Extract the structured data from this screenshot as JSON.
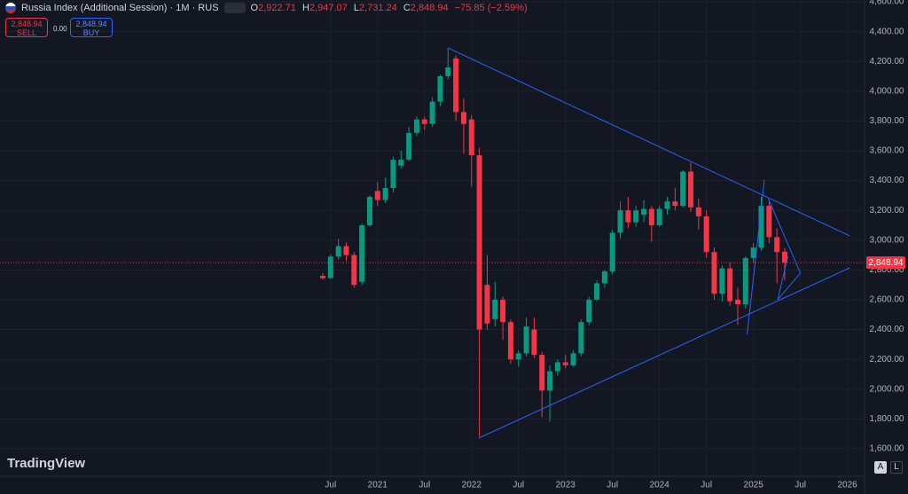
{
  "header": {
    "title": "Russia Index (Additional Session) · 1M · RUS",
    "ohlc": [
      {
        "label": "O",
        "value": "2,922.71"
      },
      {
        "label": "H",
        "value": "2,947.07"
      },
      {
        "label": "L",
        "value": "2,731.24"
      },
      {
        "label": "C",
        "value": "2,848.94"
      }
    ],
    "change": "−75.85 (−2.59%)",
    "sell": {
      "price": "2,848.94",
      "label": "SELL"
    },
    "spread": "0.00",
    "buy": {
      "price": "2,848.94",
      "label": "BUY"
    }
  },
  "chart_data": {
    "type": "candlestick",
    "categories": [
      null,
      "Jul",
      null,
      null,
      null,
      null,
      null,
      "2021",
      null,
      null,
      null,
      null,
      null,
      "Jul",
      null,
      null,
      null,
      null,
      null,
      "2022",
      null,
      null,
      null,
      null,
      null,
      "Jul",
      null,
      null,
      null,
      null,
      null,
      "2023",
      null,
      null,
      null,
      null,
      null,
      "Jul",
      null,
      null,
      null,
      null,
      null,
      "2024",
      null,
      null,
      null,
      null,
      null,
      "Jul",
      null,
      null,
      null,
      null,
      null,
      "2025",
      null,
      null,
      null,
      null,
      null,
      "Jul",
      null,
      null,
      null,
      null,
      null,
      "2026"
    ],
    "open": [
      2760,
      2745,
      2890,
      2960,
      2900,
      2720,
      3100,
      3330,
      3270,
      3350,
      3500,
      3540,
      3720,
      3810,
      3780,
      3930,
      4100,
      4220,
      3860,
      3810,
      3570,
      2700,
      2470,
      2600,
      2450,
      2200,
      2240,
      2400,
      2230,
      1990,
      2120,
      2180,
      2160,
      2240,
      2450,
      2600,
      2710,
      2790,
      3050,
      3200,
      3120,
      3170,
      3210,
      3100,
      3210,
      3260,
      3230,
      3460,
      3220,
      3160,
      2920,
      2640,
      2810,
      2600,
      2570,
      2880,
      2950,
      3230,
      3020,
      2922.71,
      null,
      null,
      null,
      null,
      null,
      null,
      null,
      null
    ],
    "high": [
      2780,
      2905,
      3010,
      2985,
      2920,
      3110,
      3300,
      3390,
      3420,
      3560,
      3600,
      3760,
      3830,
      3830,
      3960,
      4110,
      4290,
      4240,
      3950,
      3840,
      3620,
      2900,
      2720,
      2620,
      2470,
      2260,
      2480,
      2480,
      2250,
      2160,
      2200,
      2230,
      2260,
      2470,
      2620,
      2730,
      2800,
      3070,
      3260,
      3290,
      3230,
      3270,
      3230,
      3230,
      3290,
      3350,
      3470,
      3520,
      3280,
      3200,
      2950,
      2830,
      2850,
      2680,
      2890,
      2980,
      3290,
      3260,
      3080,
      2947.07,
      null,
      null,
      null,
      null,
      null,
      null,
      null,
      null
    ],
    "low": [
      2735,
      2740,
      2870,
      2860,
      2680,
      2700,
      3090,
      3230,
      3250,
      3320,
      3480,
      3530,
      3700,
      3740,
      3760,
      3900,
      4080,
      3800,
      3580,
      3360,
      1681,
      2400,
      2420,
      2330,
      2170,
      2150,
      2220,
      2210,
      1810,
      1780,
      2090,
      2140,
      2150,
      2220,
      2430,
      2590,
      2680,
      2770,
      3010,
      3080,
      3090,
      3120,
      2990,
      3090,
      3170,
      3200,
      3220,
      3190,
      3070,
      2880,
      2600,
      2590,
      2560,
      2430,
      2540,
      2850,
      2930,
      2980,
      2710,
      2731.24,
      null,
      null,
      null,
      null,
      null,
      null,
      null,
      null
    ],
    "close": [
      2745,
      2890,
      2960,
      2900,
      2700,
      3100,
      3290,
      3270,
      3350,
      3540,
      3540,
      3720,
      3810,
      3780,
      3930,
      4100,
      4160,
      3860,
      3780,
      3570,
      2400,
      2440,
      2600,
      2450,
      2200,
      2240,
      2420,
      2230,
      1990,
      2120,
      2180,
      2160,
      2240,
      2450,
      2600,
      2710,
      2790,
      3050,
      3200,
      3120,
      3200,
      3210,
      3100,
      3210,
      3260,
      3230,
      3460,
      3220,
      3160,
      2920,
      2640,
      2810,
      2590,
      2570,
      2880,
      2950,
      3230,
      3020,
      2920,
      2848.94,
      null,
      null,
      null,
      null,
      null,
      null,
      null,
      null
    ],
    "up_color": "#089981",
    "down_color": "#f23645",
    "ylim": [
      1415,
      4612
    ],
    "yticks": [
      {
        "value": 1600,
        "label": "1,600.00"
      },
      {
        "value": 1800,
        "label": "1,800.00"
      },
      {
        "value": 2000,
        "label": "2,000.00"
      },
      {
        "value": 2200,
        "label": "2,200.00"
      },
      {
        "value": 2400,
        "label": "2,400.00"
      },
      {
        "value": 2600,
        "label": "2,600.00"
      },
      {
        "value": 2800,
        "label": "2,800.00"
      },
      {
        "value": 3000,
        "label": "3,000.00"
      },
      {
        "value": 3200,
        "label": "3,200.00"
      },
      {
        "value": 3400,
        "label": "3,400.00"
      },
      {
        "value": 3600,
        "label": "3,600.00"
      },
      {
        "value": 3800,
        "label": "3,800.00"
      },
      {
        "value": 4000,
        "label": "4,000.00"
      },
      {
        "value": 4200,
        "label": "4,200.00"
      },
      {
        "value": 4400,
        "label": "4,400.00"
      },
      {
        "value": 4600,
        "label": "4,600.00"
      }
    ],
    "last_price": 2848.94,
    "last_price_label": "2,848.94",
    "trend_lines": [
      {
        "x": [
          16.0,
          67.3
        ],
        "y": [
          4290,
          3029
        ]
      },
      {
        "x": [
          19.9,
          67.3
        ],
        "y": [
          1671,
          2814
        ]
      },
      {
        "x": [
          54.2,
          56.4
        ],
        "y": [
          2368,
          3406
        ]
      },
      {
        "x": [
          56.9,
          61.0
        ],
        "y": [
          3279,
          2779
        ]
      },
      {
        "x": [
          61.0,
          58.1
        ],
        "y": [
          2779,
          2600
        ]
      },
      {
        "x": [
          58.1,
          59.4
        ],
        "y": [
          2600,
          2890
        ]
      }
    ],
    "line_color": "#2962ff",
    "grid": true
  },
  "footer": {
    "brand": "TradingView",
    "buttons": [
      "A",
      "L"
    ]
  }
}
